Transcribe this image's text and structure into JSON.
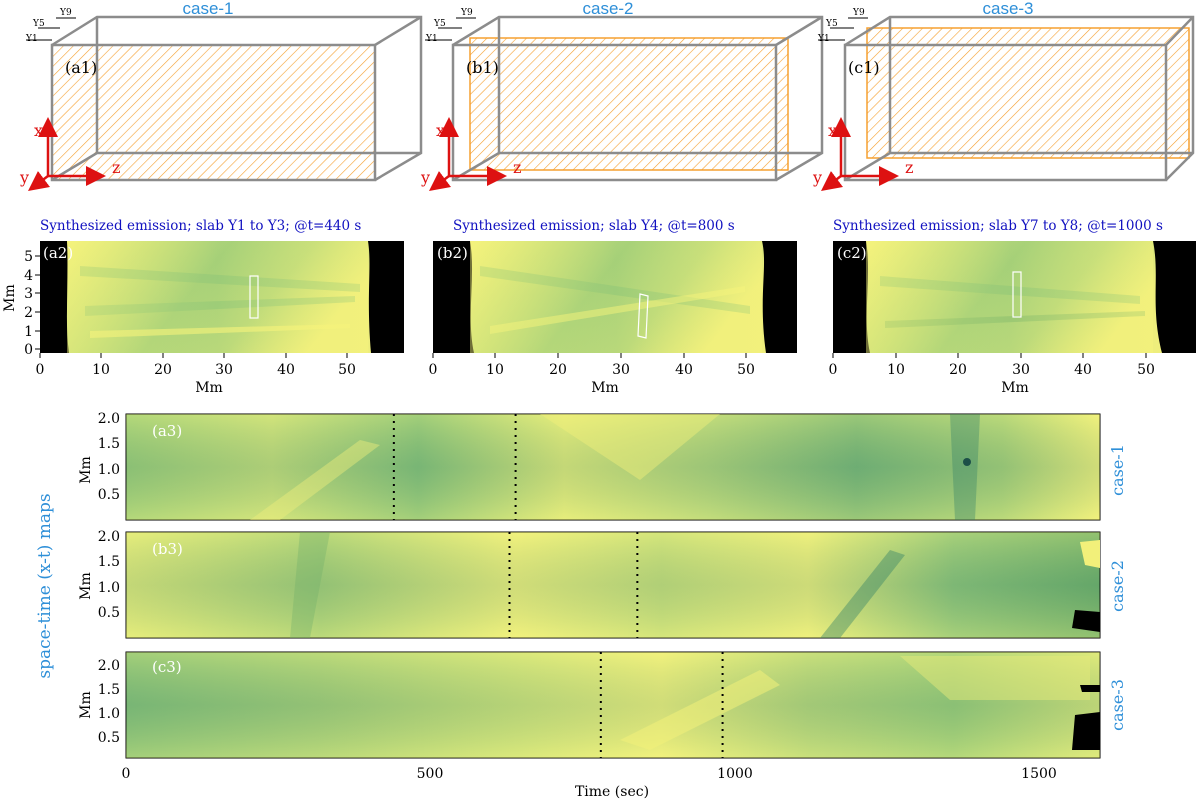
{
  "boxes": [
    {
      "title": "case-1",
      "label": "(a1)"
    },
    {
      "title": "case-2",
      "label": "(b1)"
    },
    {
      "title": "case-3",
      "label": "(c1)"
    }
  ],
  "slab_labels": {
    "y9": "Y9",
    "y5": "Y5",
    "y1": "Y1"
  },
  "axes_3d": {
    "x": "x",
    "y": "y",
    "z": "z"
  },
  "colors": {
    "hatch": "#f5a030",
    "box": "#8c8c8c",
    "axis_arrow": "#dd1111",
    "title_blue": "#2e8fd8",
    "synth_blue": "#1010c0",
    "map_yellow": "#f2f078",
    "map_green": "#6fae6a",
    "map_dark": "#1f6e60"
  },
  "emission": [
    {
      "title": "Synthesized emission; slab Y1 to Y3;  @t=440 s",
      "label": "(a2)",
      "ylabel": "Mm",
      "xlabel": "Mm"
    },
    {
      "title": "Synthesized emission; slab Y4;  @t=800 s",
      "label": "(b2)",
      "xlabel": "Mm"
    },
    {
      "title": "Synthesized emission; slab Y7 to Y8;  @t=1000 s",
      "label": "(c2)",
      "xlabel": "Mm"
    }
  ],
  "emission_axes": {
    "x_ticks": [
      "0",
      "10",
      "20",
      "30",
      "40",
      "50"
    ],
    "y_ticks": [
      "0",
      "1",
      "2",
      "3",
      "4",
      "5"
    ]
  },
  "xt_maps": [
    {
      "label": "(a3)",
      "case": "case-1",
      "ylabel": "Mm",
      "y_ticks": [
        "0.5",
        "1.0",
        "1.5",
        "2.0"
      ],
      "dotted_times": [
        440,
        640
      ]
    },
    {
      "label": "(b3)",
      "case": "case-2",
      "ylabel": "Mm",
      "y_ticks": [
        "0.5",
        "1.0",
        "1.5",
        "2.0"
      ],
      "dotted_times": [
        630,
        840
      ]
    },
    {
      "label": "(c3)",
      "case": "case-3",
      "ylabel": "Mm",
      "y_ticks": [
        "0.5",
        "1.0",
        "1.5",
        "2.0"
      ],
      "dotted_times": [
        780,
        980
      ]
    }
  ],
  "xt_axis": {
    "x_ticks": [
      "0",
      "500",
      "1000",
      "1500"
    ],
    "xlabel": "Time (sec)",
    "xmax": 1600
  },
  "side_label": "space-time (x-t) maps"
}
